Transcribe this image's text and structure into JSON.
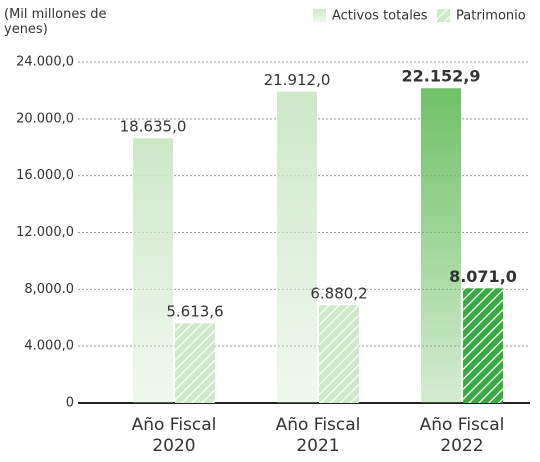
{
  "chart_data": {
    "type": "bar",
    "y_label": "(Mil millones de yenes)",
    "categories": [
      "Año Fiscal 2020",
      "Año Fiscal 2021",
      "Año Fiscal 2022"
    ],
    "series": [
      {
        "name": "Activos totales",
        "colors": [
          "#cde9c8",
          "#cde9c8",
          "#6fc166"
        ],
        "values": [
          18635.0,
          21912.0,
          22152.9
        ],
        "value_labels": [
          "18.635,0",
          "21.912,0",
          "22.152,9"
        ]
      },
      {
        "name": "Patrimonio",
        "colors": [
          "#cde9c8",
          "#cde9c8",
          "#3aa845"
        ],
        "pattern": "hatch",
        "values": [
          5613.6,
          6880.2,
          8071.0
        ],
        "value_labels": [
          "5.613,6",
          "6.880,2",
          "8.071,0"
        ]
      }
    ],
    "ylim": [
      0,
      24000
    ],
    "yticks": [
      0,
      {
        "value": 4000,
        "label": "4.000,0"
      },
      {
        "value": 8000,
        "label": "8,000.0"
      },
      {
        "value": 12000,
        "label": "12.000,0"
      },
      {
        "value": 16000,
        "label": "16.000,0"
      },
      {
        "value": 20000,
        "label": "20.000,0"
      },
      {
        "value": 24000,
        "label": "24.000,0"
      }
    ],
    "grid": true,
    "legend": "top-right"
  }
}
